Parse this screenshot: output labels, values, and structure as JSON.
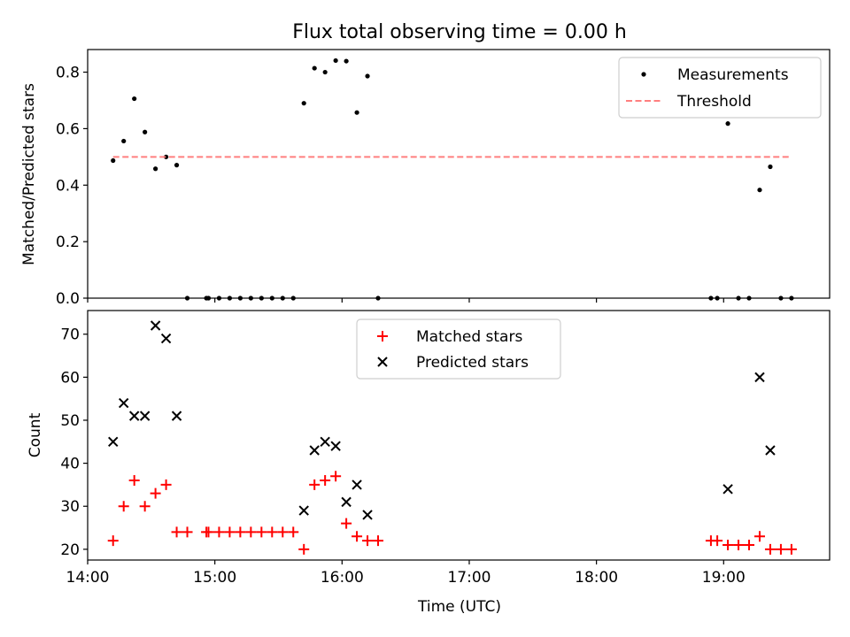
{
  "title": "Flux total observing time = 0.00 h",
  "chart_data": [
    {
      "type": "scatter",
      "panel": "top",
      "title": "Flux total observing time = 0.00 h",
      "xlabel": "",
      "ylabel": "Matched/Predicted stars",
      "xlim": [
        "14:00",
        "19:50"
      ],
      "ylim": [
        0,
        0.88
      ],
      "y_ticks": [
        0.0,
        0.2,
        0.4,
        0.6,
        0.8
      ],
      "y_tick_labels": [
        "0.0",
        "0.2",
        "0.4",
        "0.6",
        "0.8"
      ],
      "x_ticks": [
        "14:00",
        "15:00",
        "16:00",
        "17:00",
        "18:00",
        "19:00"
      ],
      "x_tick_labels_visible": false,
      "legend_position": "top-right",
      "legend": [
        "Measurements",
        "Threshold"
      ],
      "series": [
        {
          "name": "Measurements",
          "style": "dot",
          "color": "#000000",
          "points": [
            [
              "14:12",
              0.487
            ],
            [
              "14:17",
              0.556
            ],
            [
              "14:22",
              0.706
            ],
            [
              "14:27",
              0.588
            ],
            [
              "14:32",
              0.458
            ],
            [
              "14:37",
              0.5
            ],
            [
              "14:42",
              0.471
            ],
            [
              "14:47",
              0.0
            ],
            [
              "14:56",
              0.0
            ],
            [
              "14:57",
              0.0
            ],
            [
              "15:02",
              0.0
            ],
            [
              "15:07",
              0.0
            ],
            [
              "15:12",
              0.0
            ],
            [
              "15:17",
              0.0
            ],
            [
              "15:22",
              0.0
            ],
            [
              "15:27",
              0.0
            ],
            [
              "15:32",
              0.0
            ],
            [
              "15:37",
              0.0
            ],
            [
              "15:42",
              0.69
            ],
            [
              "15:47",
              0.814
            ],
            [
              "15:52",
              0.8
            ],
            [
              "15:57",
              0.841
            ],
            [
              "16:02",
              0.839
            ],
            [
              "16:07",
              0.657
            ],
            [
              "16:12",
              0.786
            ],
            [
              "16:17",
              0.0
            ],
            [
              "18:54",
              0.0
            ],
            [
              "18:57",
              0.0
            ],
            [
              "19:02",
              0.618
            ],
            [
              "19:07",
              0.0
            ],
            [
              "19:12",
              0.0
            ],
            [
              "19:17",
              0.383
            ],
            [
              "19:22",
              0.465
            ],
            [
              "19:27",
              0.0
            ],
            [
              "19:32",
              0.0
            ]
          ]
        },
        {
          "name": "Threshold",
          "style": "dashed-line",
          "color": "#ff7f7f",
          "points": [
            [
              "14:12",
              0.5
            ],
            [
              "19:32",
              0.5
            ]
          ]
        }
      ]
    },
    {
      "type": "scatter",
      "panel": "bottom",
      "xlabel": "Time (UTC)",
      "ylabel": "Count",
      "xlim": [
        "14:00",
        "19:50"
      ],
      "ylim": [
        17.5,
        75.5
      ],
      "y_ticks": [
        20,
        30,
        40,
        50,
        60,
        70
      ],
      "y_tick_labels": [
        "20",
        "30",
        "40",
        "50",
        "60",
        "70"
      ],
      "x_ticks": [
        "14:00",
        "15:00",
        "16:00",
        "17:00",
        "18:00",
        "19:00"
      ],
      "x_tick_labels": [
        "14:00",
        "15:00",
        "16:00",
        "17:00",
        "18:00",
        "19:00"
      ],
      "legend_position": "top-center",
      "legend": [
        "Matched stars",
        "Predicted stars"
      ],
      "series": [
        {
          "name": "Matched stars",
          "marker": "plus",
          "color": "#ff0000",
          "points": [
            [
              "14:12",
              22
            ],
            [
              "14:17",
              30
            ],
            [
              "14:22",
              36
            ],
            [
              "14:27",
              30
            ],
            [
              "14:32",
              33
            ],
            [
              "14:37",
              35
            ],
            [
              "14:42",
              24
            ],
            [
              "14:47",
              24
            ],
            [
              "14:56",
              24
            ],
            [
              "14:57",
              24
            ],
            [
              "15:02",
              24
            ],
            [
              "15:07",
              24
            ],
            [
              "15:12",
              24
            ],
            [
              "15:17",
              24
            ],
            [
              "15:22",
              24
            ],
            [
              "15:27",
              24
            ],
            [
              "15:32",
              24
            ],
            [
              "15:37",
              24
            ],
            [
              "15:42",
              20
            ],
            [
              "15:47",
              35
            ],
            [
              "15:52",
              36
            ],
            [
              "15:57",
              37
            ],
            [
              "16:02",
              26
            ],
            [
              "16:07",
              23
            ],
            [
              "16:12",
              22
            ],
            [
              "16:17",
              22
            ],
            [
              "18:54",
              22
            ],
            [
              "18:57",
              22
            ],
            [
              "19:02",
              21
            ],
            [
              "19:07",
              21
            ],
            [
              "19:12",
              21
            ],
            [
              "19:17",
              23
            ],
            [
              "19:22",
              20
            ],
            [
              "19:27",
              20
            ],
            [
              "19:32",
              20
            ]
          ]
        },
        {
          "name": "Predicted stars",
          "marker": "x",
          "color": "#000000",
          "points": [
            [
              "14:12",
              45
            ],
            [
              "14:17",
              54
            ],
            [
              "14:22",
              51
            ],
            [
              "14:27",
              51
            ],
            [
              "14:32",
              72
            ],
            [
              "14:37",
              69
            ],
            [
              "14:42",
              51
            ],
            [
              "15:42",
              29
            ],
            [
              "15:47",
              43
            ],
            [
              "15:52",
              45
            ],
            [
              "15:57",
              44
            ],
            [
              "16:02",
              31
            ],
            [
              "16:07",
              35
            ],
            [
              "16:12",
              28
            ],
            [
              "19:02",
              34
            ],
            [
              "19:17",
              60
            ],
            [
              "19:22",
              43
            ]
          ]
        }
      ]
    }
  ]
}
